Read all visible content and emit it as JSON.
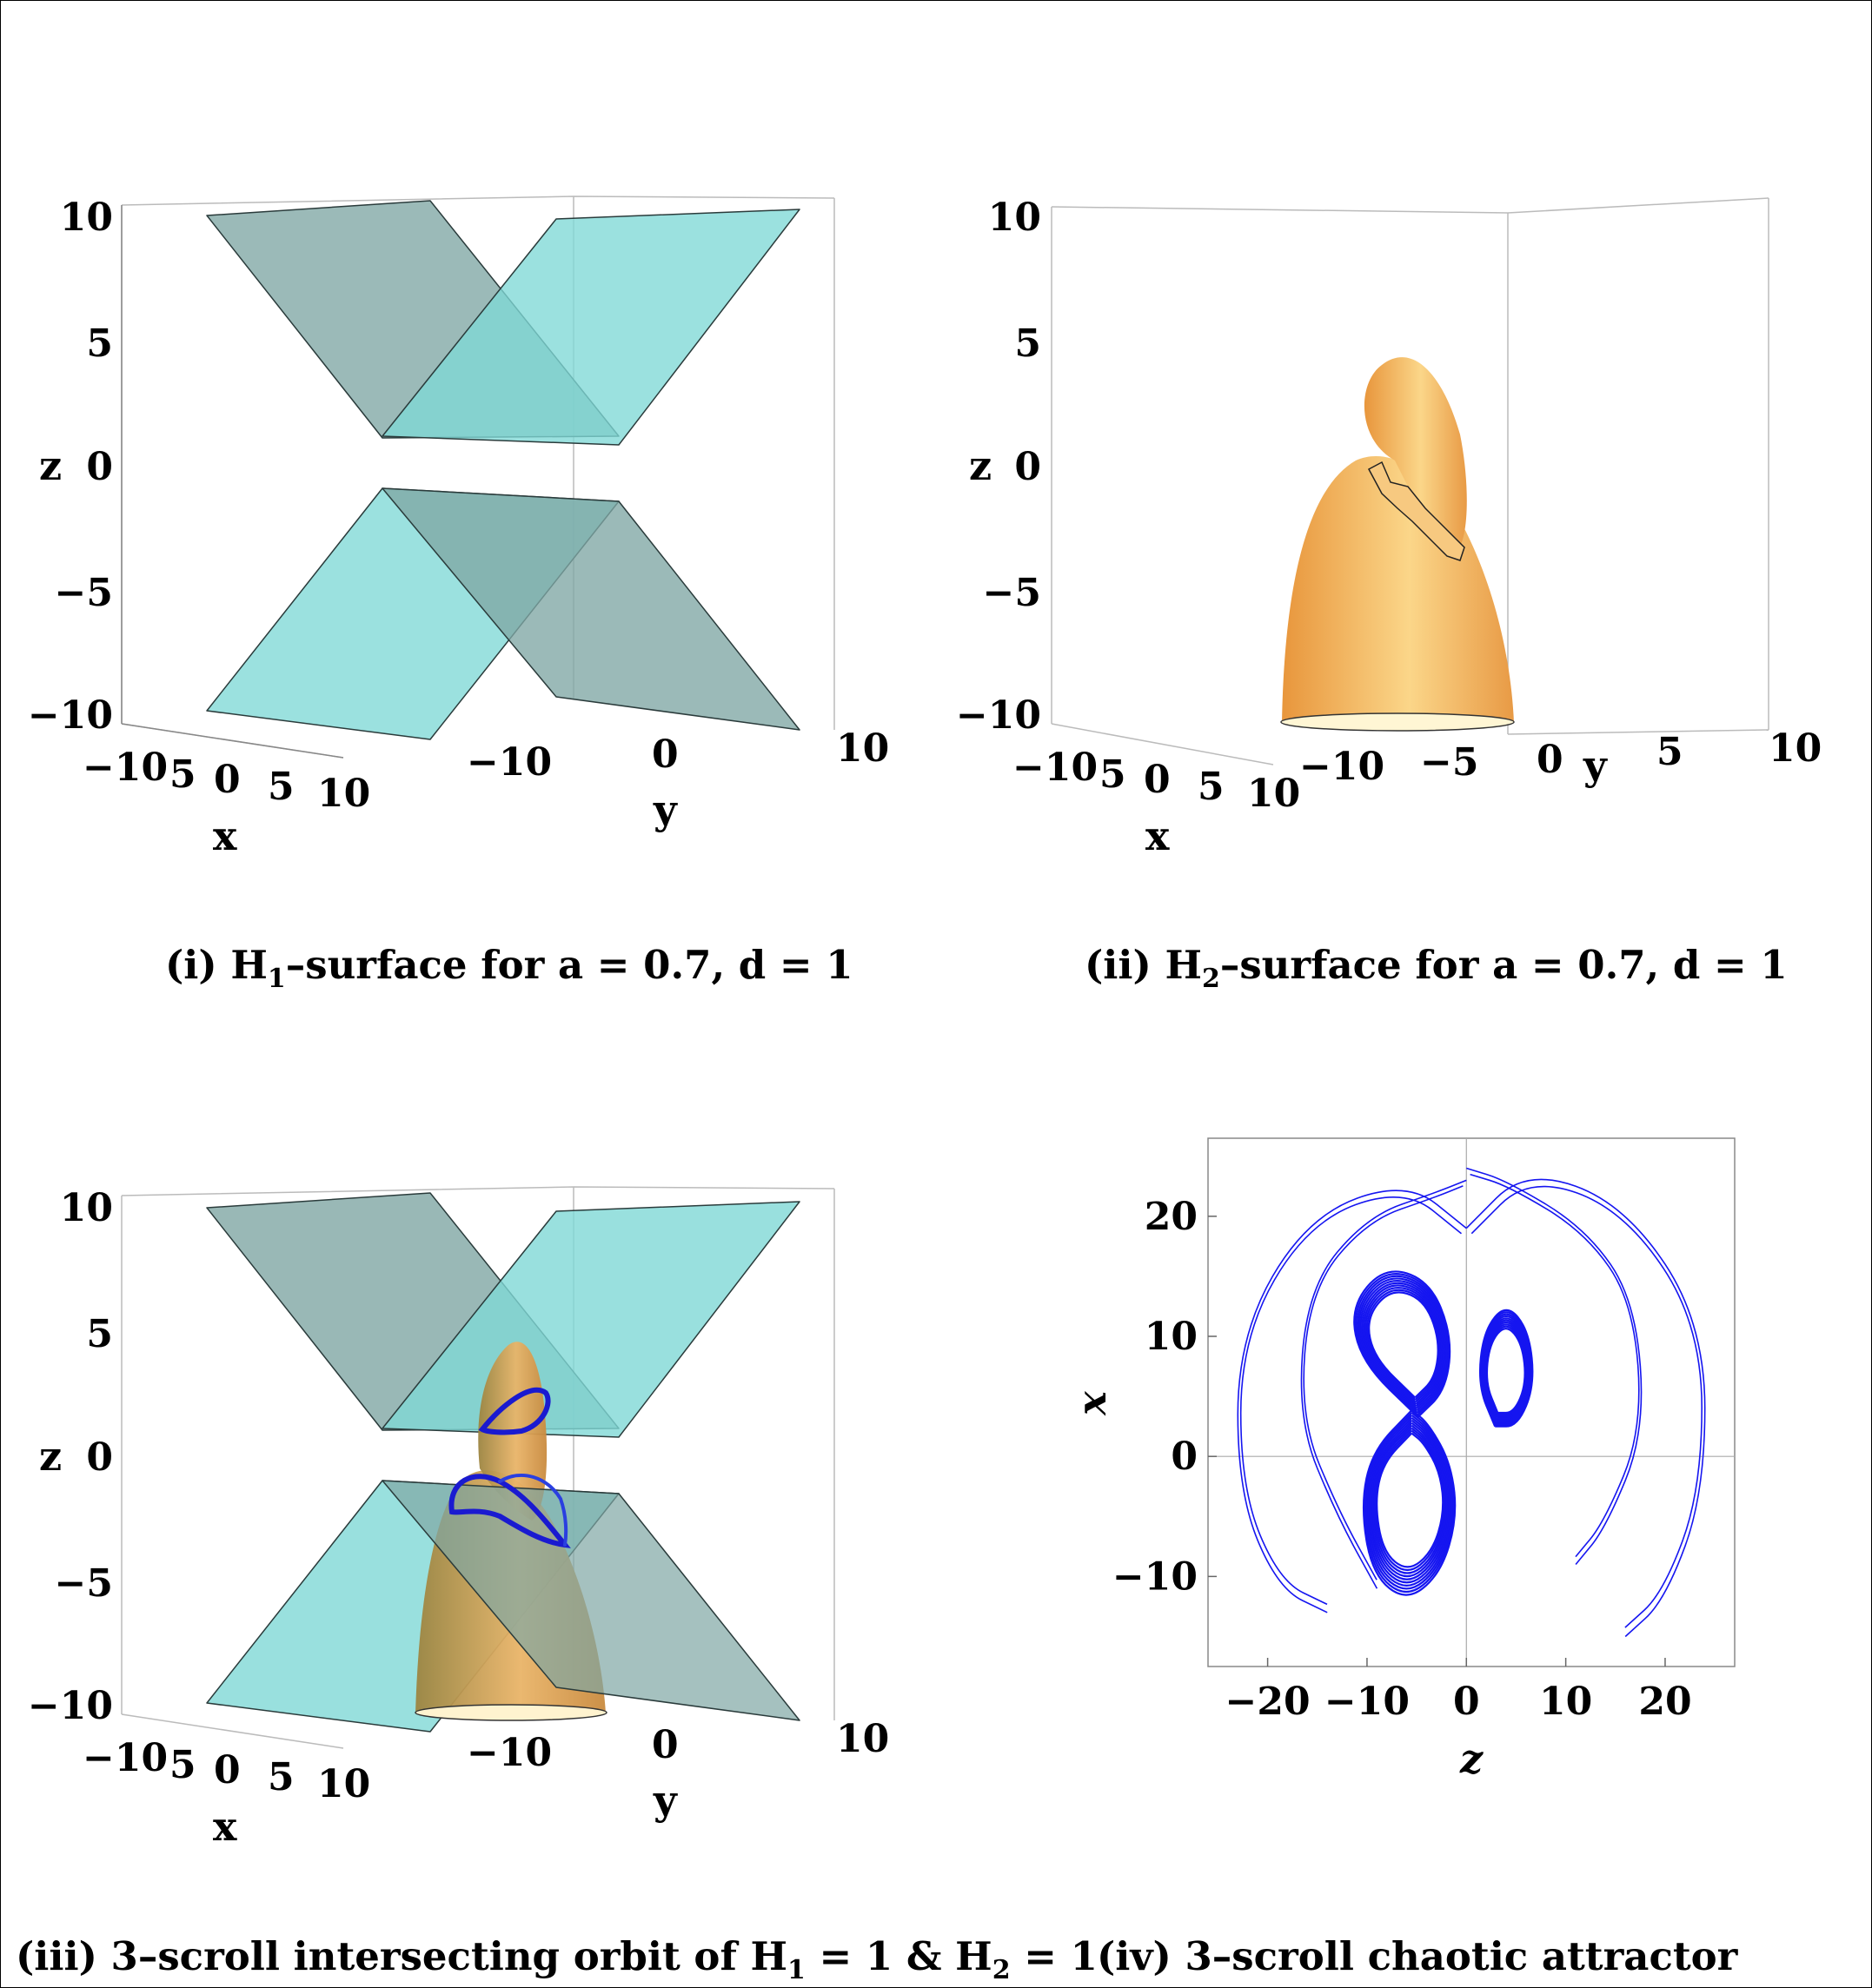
{
  "panels": [
    {
      "id": "i",
      "caption": {
        "lead": "(i) H",
        "sub": "1",
        "tail": "–surface for a = 0.7, d = 1"
      },
      "z_ticks": [
        "10",
        "5",
        "0",
        "−5",
        "−10"
      ],
      "x_ticks": [
        "−10",
        "5",
        "0",
        "5",
        "10"
      ],
      "y_ticks": [
        "−10",
        "0",
        "10"
      ],
      "axis_labels": {
        "x": "x",
        "y": "y",
        "z": "z"
      }
    },
    {
      "id": "ii",
      "caption": {
        "lead": "(ii)  H",
        "sub": "2",
        "tail": "–surface for a = 0.7, d = 1"
      },
      "z_ticks": [
        "10",
        "5",
        "0",
        "−5",
        "−10"
      ],
      "x_ticks": [
        "−10",
        "5",
        "0",
        "5",
        "10"
      ],
      "y_ticks": [
        "−10",
        "−5",
        "0",
        "5",
        "10"
      ],
      "axis_labels": {
        "x": "x",
        "y": "y",
        "z": "z"
      }
    },
    {
      "id": "iii",
      "caption": {
        "lead": "(iii)  3–scroll intersecting orbit of H",
        "sub": "1",
        "mid": " = 1 & H",
        "sub2": "2",
        "tail": " = 1"
      },
      "z_ticks": [
        "10",
        "5",
        "0",
        "−5",
        "−10"
      ],
      "x_ticks": [
        "−10",
        "5",
        "0",
        "5",
        "10"
      ],
      "y_ticks": [
        "−10",
        "0",
        "10"
      ],
      "axis_labels": {
        "x": "x",
        "y": "y",
        "z": "z"
      }
    },
    {
      "id": "iv",
      "caption": {
        "text": "(iv)  3–scroll chaotic attractor"
      }
    }
  ],
  "chart_data": {
    "type": "line",
    "xlabel": "z",
    "ylabel": "x",
    "xlim": [
      -26,
      27
    ],
    "ylim": [
      -17.5,
      26.5
    ],
    "x_ticks": [
      -20,
      -10,
      0,
      10,
      20
    ],
    "y_ticks": [
      -10,
      0,
      10,
      20
    ],
    "x_tick_labels": [
      "−20",
      "−10",
      "0",
      "10",
      "20"
    ],
    "y_tick_labels": [
      "−10",
      "0",
      "10",
      "20"
    ],
    "series_color": "#1515f0",
    "grid": false,
    "series": [
      {
        "x": [
          -5.5,
          -9,
          -10,
          -9,
          -6,
          -3,
          -1.5,
          -2,
          -4,
          -5.5
        ],
        "y": [
          3,
          0,
          -4,
          -9,
          -11,
          -9,
          -5,
          -1,
          2,
          3
        ]
      },
      {
        "x": [
          -5,
          -10,
          -11,
          -8,
          -4,
          -2,
          -2.5,
          -5
        ],
        "y": [
          4,
          8,
          12,
          15,
          14,
          10,
          6,
          4
        ]
      },
      {
        "x": [
          3,
          1.5,
          2,
          4,
          6,
          6.5,
          5,
          3
        ],
        "y": [
          3,
          6,
          10,
          12,
          10,
          6,
          3,
          3
        ]
      },
      {
        "x": [
          0,
          -3,
          -10,
          -16,
          -17,
          -13,
          -9
        ],
        "y": [
          23,
          22,
          20,
          14,
          3,
          -5,
          -11
        ]
      },
      {
        "x": [
          0,
          4,
          12,
          17,
          18,
          14,
          11
        ],
        "y": [
          24,
          23,
          19,
          13,
          2,
          -6,
          -9
        ]
      },
      {
        "x": [
          0,
          -6,
          -16,
          -23,
          -23,
          -19,
          -14
        ],
        "y": [
          19,
          23,
          20,
          10,
          -3,
          -11,
          -13
        ]
      },
      {
        "x": [
          0,
          6,
          16,
          24,
          24,
          20,
          16
        ],
        "y": [
          19,
          24,
          21,
          11,
          -3,
          -12,
          -15
        ]
      }
    ]
  },
  "colors": {
    "cyan_surface": "#7fd8d6",
    "gray_surface": "#7fa6a4",
    "orange_surface": "#f0a34c",
    "orbit_blue": "#1a1ad0"
  }
}
